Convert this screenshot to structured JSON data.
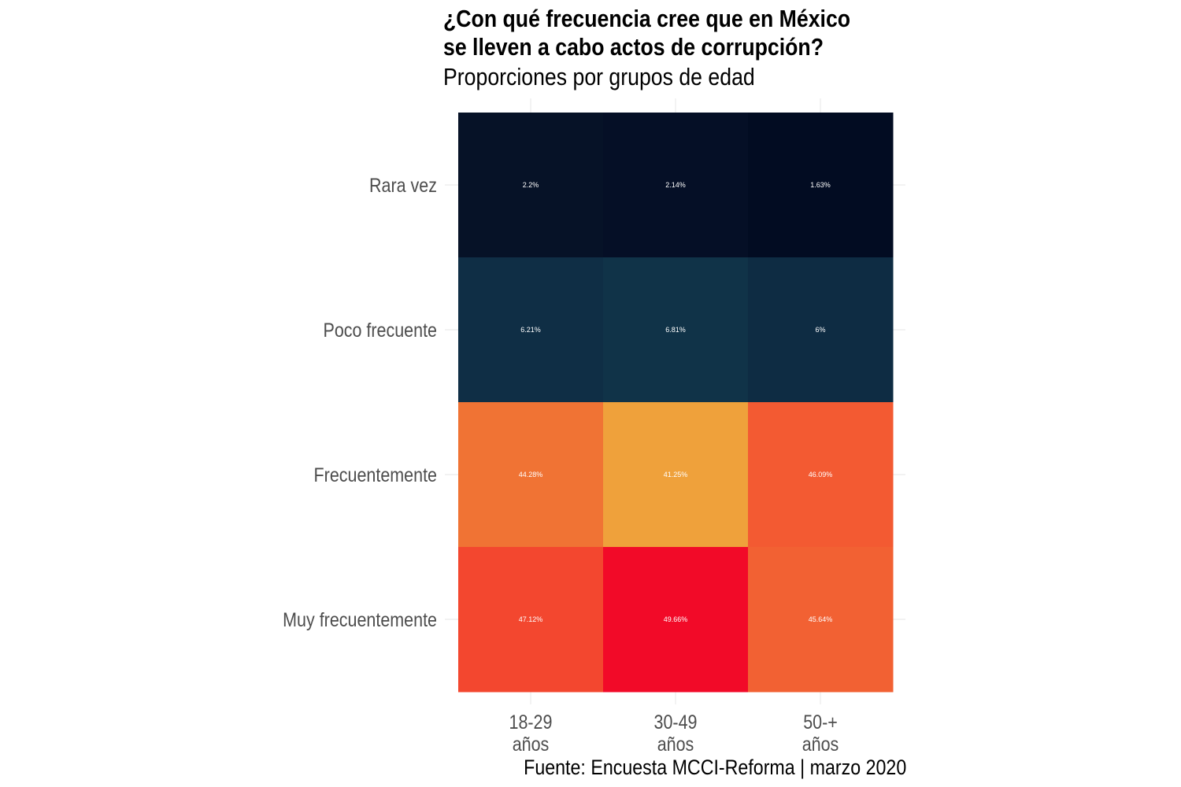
{
  "title_lines": [
    "¿Con qué frecuencia cree que en México",
    "se lleven a cabo actos de corrupción?"
  ],
  "subtitle": "Proporciones por grupos de edad",
  "caption": "Fuente: Encuesta MCCI-Reforma | marzo 2020",
  "chart_data": {
    "type": "heatmap",
    "title": "¿Con qué frecuencia cree que en México se lleven a cabo actos de corrupción?",
    "subtitle": "Proporciones por grupos de edad",
    "x_categories": [
      {
        "line1": "18-29",
        "line2": "años"
      },
      {
        "line1": "30-49",
        "line2": "años"
      },
      {
        "line1": "50-+",
        "line2": "años"
      }
    ],
    "y_categories": [
      "Rara vez",
      "Poco frecuente",
      "Frecuentemente",
      "Muy frecuentemente"
    ],
    "values": [
      [
        2.2,
        2.14,
        1.63
      ],
      [
        6.21,
        6.81,
        6.0
      ],
      [
        44.28,
        41.25,
        46.09
      ],
      [
        47.12,
        49.66,
        45.64
      ]
    ],
    "labels": [
      [
        "2.2%",
        "2.14%",
        "1.63%"
      ],
      [
        "6.21%",
        "6.81%",
        "6%"
      ],
      [
        "44.28%",
        "41.25%",
        "46.09%"
      ],
      [
        "47.12%",
        "49.66%",
        "45.64%"
      ]
    ],
    "colors": [
      [
        "#061227",
        "#050f26",
        "#020c22"
      ],
      [
        "#0f2e45",
        "#103348",
        "#0e2c43"
      ],
      [
        "#f07334",
        "#efa13b",
        "#f35a32"
      ],
      [
        "#f3472f",
        "#f20a28",
        "#f26133"
      ]
    ],
    "label_color": "#ffffff",
    "grid_color": "#ebebeb",
    "axis_text_color": "#4d4d4d"
  }
}
